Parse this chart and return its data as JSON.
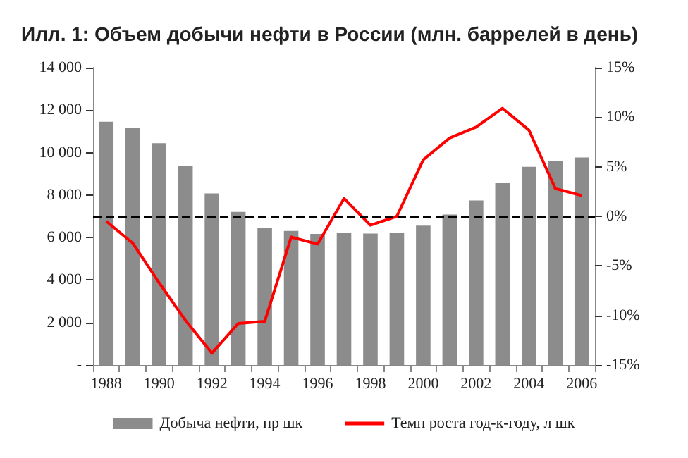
{
  "chart_data": {
    "type": "bar",
    "title": "Илл. 1: Объем добычи нефти в России (млн. баррелей в день)",
    "categories": [
      "1988",
      null,
      "1990",
      null,
      "1992",
      null,
      "1994",
      null,
      "1996",
      null,
      "1998",
      null,
      "2000",
      null,
      "2002",
      null,
      "2004",
      null,
      "2006"
    ],
    "series": [
      {
        "name": "Добыча нефти, пр шк",
        "color": "#8c8c8c",
        "values": [
          11450,
          11170,
          10440,
          9380,
          8080,
          7210,
          6440,
          6310,
          6170,
          6210,
          6190,
          6210,
          6560,
          7080,
          7750,
          8560,
          9330,
          9600,
          9770
        ]
      },
      {
        "name": "Темп роста год-к-году, л шк",
        "type": "line",
        "axis": "y2",
        "color": "#ff0000",
        "values": [
          -0.5,
          -2.7,
          -6.7,
          -10.5,
          -13.8,
          -10.8,
          -10.6,
          -2.1,
          -2.8,
          1.8,
          -0.9,
          0.0,
          5.7,
          7.9,
          9.0,
          10.9,
          8.7,
          2.8,
          2.1
        ]
      }
    ],
    "ylim": [
      0,
      14000
    ],
    "yticks": [
      {
        "value": 0,
        "label": "-"
      },
      {
        "value": 2000,
        "label": "2 000"
      },
      {
        "value": 4000,
        "label": "4 000"
      },
      {
        "value": 6000,
        "label": "6 000"
      },
      {
        "value": 8000,
        "label": "8 000"
      },
      {
        "value": 10000,
        "label": "10 000"
      },
      {
        "value": 12000,
        "label": "12 000"
      },
      {
        "value": 14000,
        "label": "14 000"
      }
    ],
    "y2lim": [
      -15,
      15
    ],
    "y2ticks": [
      {
        "value": -15,
        "label": "-15%"
      },
      {
        "value": -10,
        "label": "-10%"
      },
      {
        "value": -5,
        "label": "-5%"
      },
      {
        "value": 0,
        "label": "0%"
      },
      {
        "value": 5,
        "label": "5%"
      },
      {
        "value": 10,
        "label": "10%"
      },
      {
        "value": 15,
        "label": "15%"
      }
    ],
    "ref_lines": [
      {
        "axis": "y",
        "value": 7000,
        "color": "#000000",
        "line_style": "dashed"
      }
    ],
    "legend": "bottom",
    "grid": false,
    "marker": "none",
    "line_style": "solid"
  }
}
